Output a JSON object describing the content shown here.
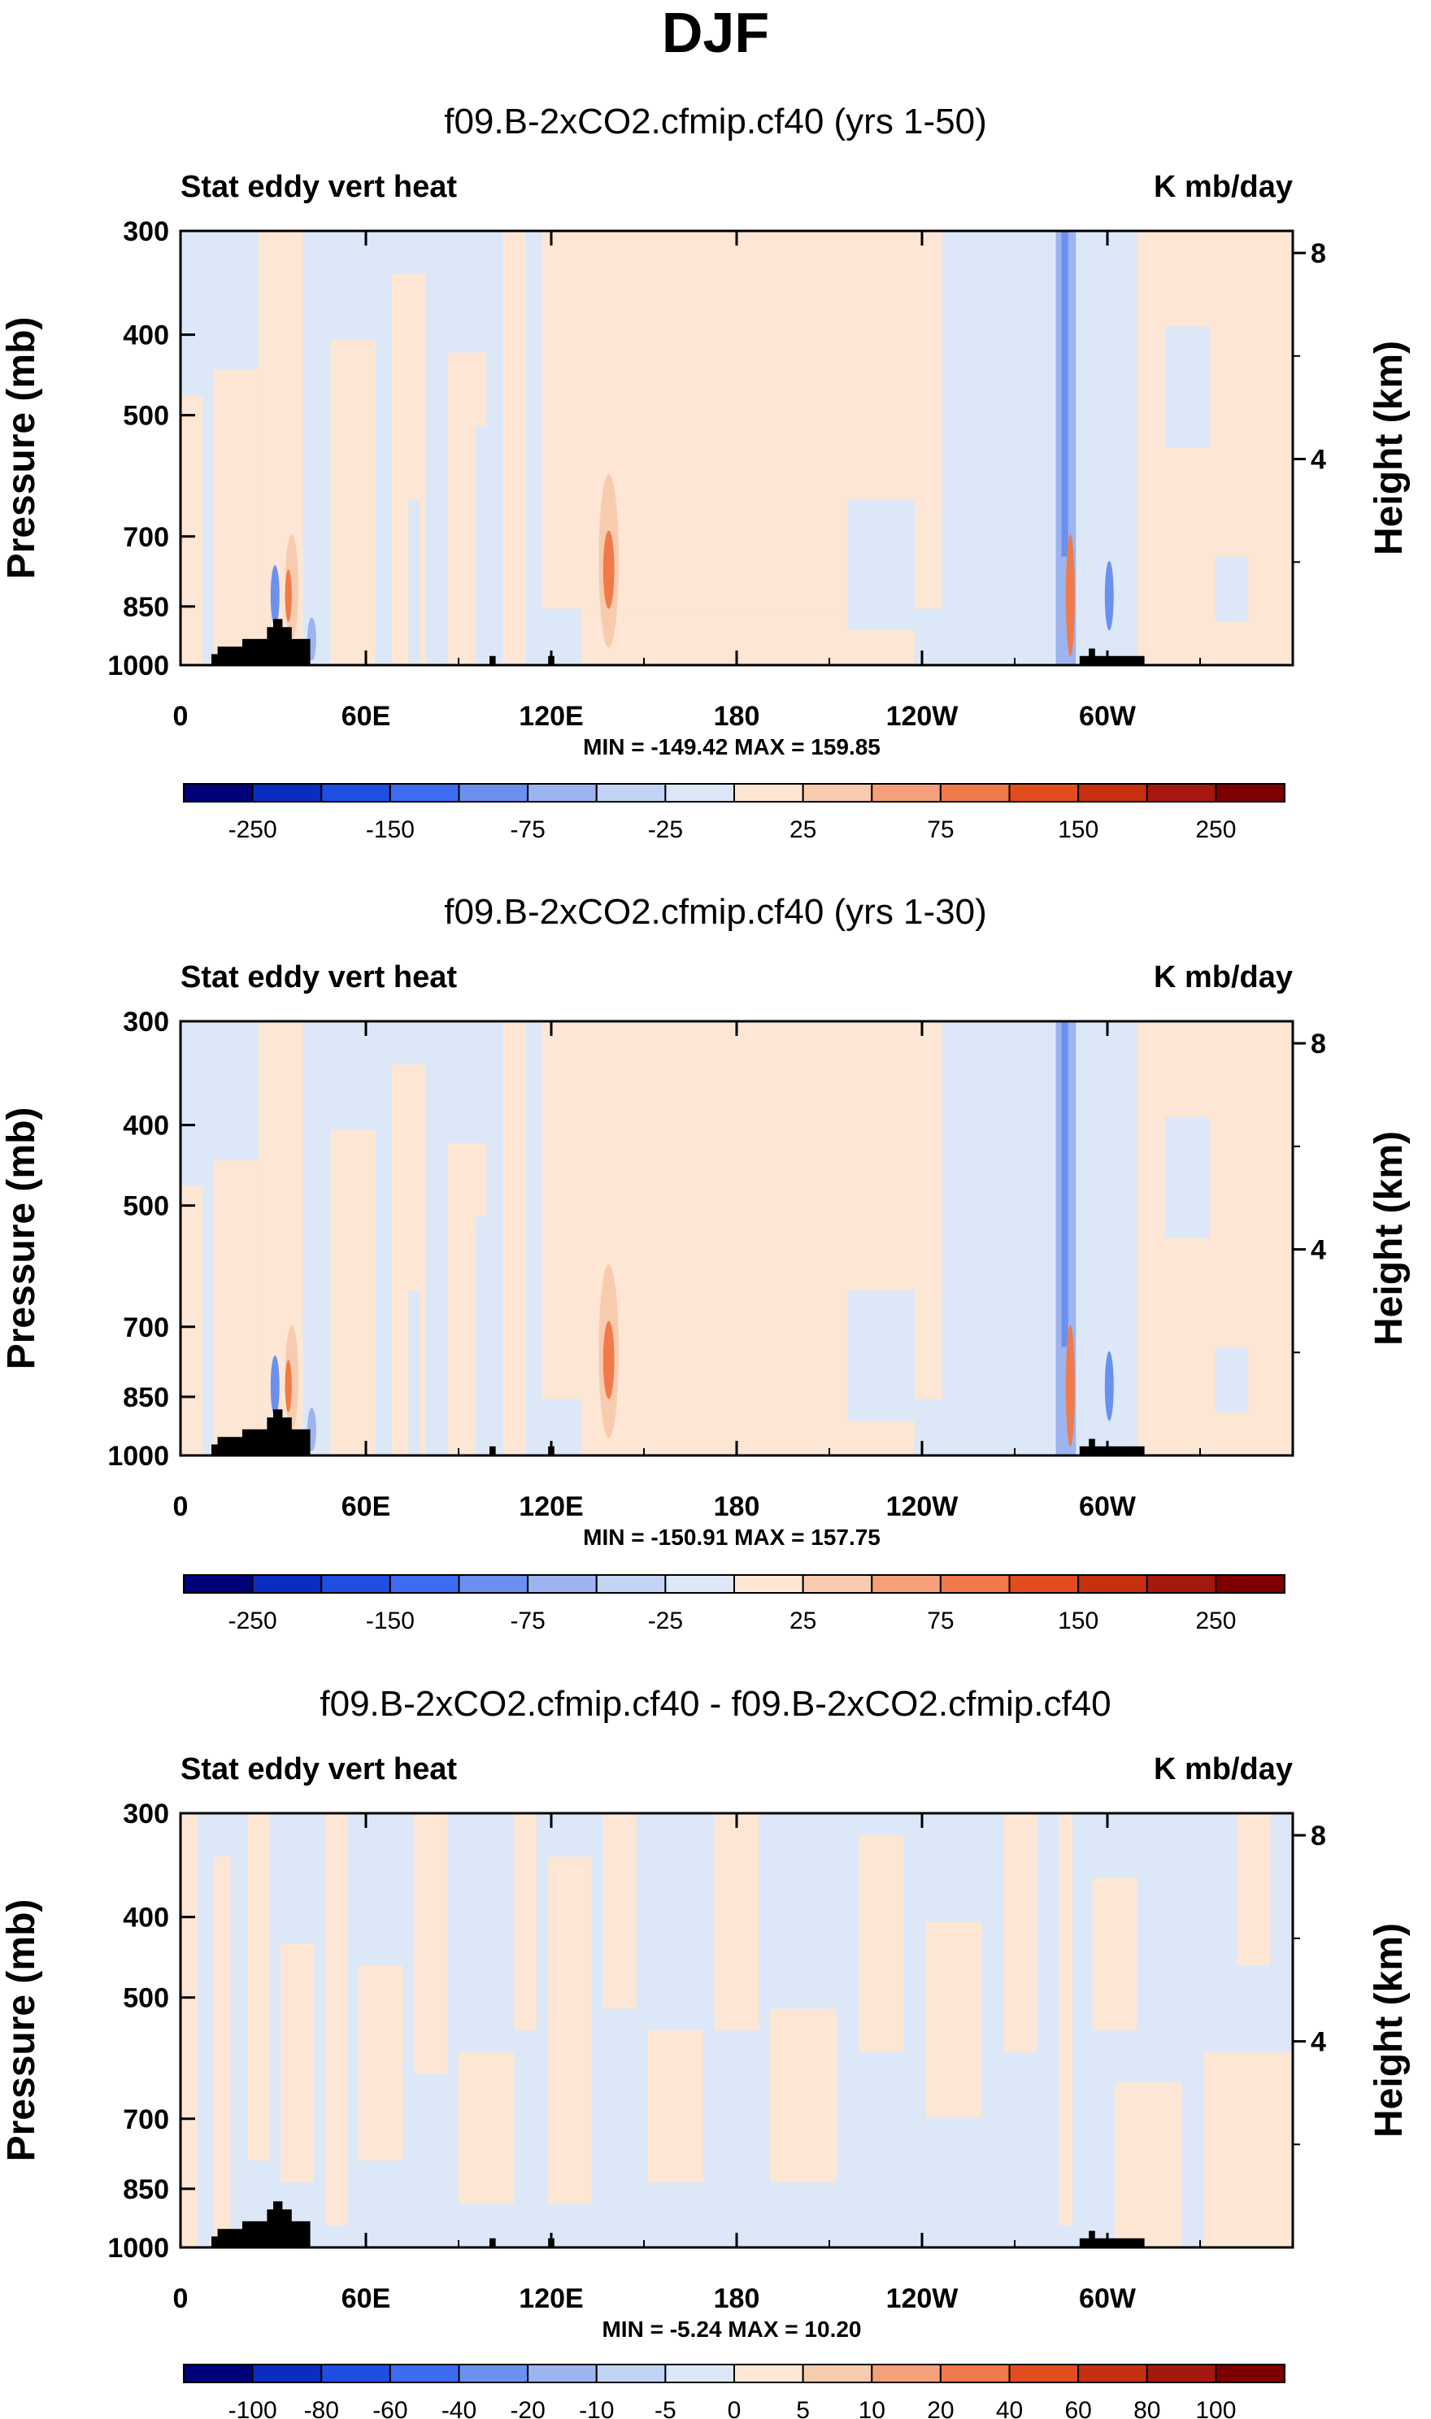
{
  "figure": {
    "title": "DJF"
  },
  "chart_data": [
    {
      "type": "heatmap",
      "title": "f09.B-2xCO2.cfmip.cf40 (yrs 1-50)",
      "left_label": "Stat eddy vert heat",
      "right_label": "K mb/day",
      "ylabel": "Pressure (mb)",
      "ylabel_right": "Height (km)",
      "x_ticks": [
        "0",
        "60E",
        "120E",
        "180",
        "120W",
        "60W"
      ],
      "x_tick_lons": [
        0,
        60,
        120,
        180,
        240,
        300
      ],
      "xlim": [
        0,
        360
      ],
      "y_ticks": [
        "300",
        "400",
        "500",
        "700",
        "850",
        "1000"
      ],
      "y_tick_values": [
        300,
        400,
        500,
        700,
        850,
        1000
      ],
      "ylim": [
        1000,
        300
      ],
      "y_ticks_right": [
        "8",
        "4"
      ],
      "y_tick_right_values": [
        8,
        4
      ],
      "stats": "MIN = -149.42  MAX = 159.85",
      "colorbar_labels": [
        "-250",
        "-150",
        "-75",
        "-25",
        "25",
        "75",
        "150",
        "250"
      ],
      "min": -149.42,
      "max": 159.85
    },
    {
      "type": "heatmap",
      "title": "f09.B-2xCO2.cfmip.cf40 (yrs 1-30)",
      "left_label": "Stat eddy vert heat",
      "right_label": "K mb/day",
      "ylabel": "Pressure (mb)",
      "ylabel_right": "Height (km)",
      "x_ticks": [
        "0",
        "60E",
        "120E",
        "180",
        "120W",
        "60W"
      ],
      "x_tick_lons": [
        0,
        60,
        120,
        180,
        240,
        300
      ],
      "xlim": [
        0,
        360
      ],
      "y_ticks": [
        "300",
        "400",
        "500",
        "700",
        "850",
        "1000"
      ],
      "y_tick_values": [
        300,
        400,
        500,
        700,
        850,
        1000
      ],
      "ylim": [
        1000,
        300
      ],
      "y_ticks_right": [
        "8",
        "4"
      ],
      "y_tick_right_values": [
        8,
        4
      ],
      "stats": "MIN = -150.91  MAX = 157.75",
      "colorbar_labels": [
        "-250",
        "-150",
        "-75",
        "-25",
        "25",
        "75",
        "150",
        "250"
      ],
      "min": -150.91,
      "max": 157.75
    },
    {
      "type": "heatmap",
      "title": "f09.B-2xCO2.cfmip.cf40 - f09.B-2xCO2.cfmip.cf40",
      "left_label": "Stat eddy vert heat",
      "right_label": "K mb/day",
      "ylabel": "Pressure (mb)",
      "ylabel_right": "Height (km)",
      "x_ticks": [
        "0",
        "60E",
        "120E",
        "180",
        "120W",
        "60W"
      ],
      "x_tick_lons": [
        0,
        60,
        120,
        180,
        240,
        300
      ],
      "xlim": [
        0,
        360
      ],
      "y_ticks": [
        "300",
        "400",
        "500",
        "700",
        "850",
        "1000"
      ],
      "y_tick_values": [
        300,
        400,
        500,
        700,
        850,
        1000
      ],
      "ylim": [
        1000,
        300
      ],
      "y_ticks_right": [
        "8",
        "4"
      ],
      "y_tick_right_values": [
        8,
        4
      ],
      "stats": "MIN =  -5.24  MAX =  10.20",
      "colorbar_labels": [
        "-100",
        "-80",
        "-60",
        "-40",
        "-20",
        "-10",
        "-5",
        "0",
        "5",
        "10",
        "20",
        "40",
        "60",
        "80",
        "100"
      ],
      "min": -5.24,
      "max": 10.2
    }
  ],
  "colorbar_colors": [
    "#00007a",
    "#0a2dbf",
    "#1f4ee3",
    "#3c6cf0",
    "#6b90f0",
    "#9cb4f0",
    "#c3d3f3",
    "#dce8f8",
    "#fde6d4",
    "#f9cbae",
    "#f5a07a",
    "#f07a4a",
    "#e24d20",
    "#c6300f",
    "#a41810",
    "#7d0000"
  ],
  "field_colors": {
    "positive": "#fde6d4",
    "negative": "#dce8f8",
    "strong_positive": "#f07a4a",
    "mid_positive": "#f9cbae",
    "strong_negative": "#6b90f0",
    "mid_negative": "#9cb4f0",
    "terrain": "#000000"
  }
}
